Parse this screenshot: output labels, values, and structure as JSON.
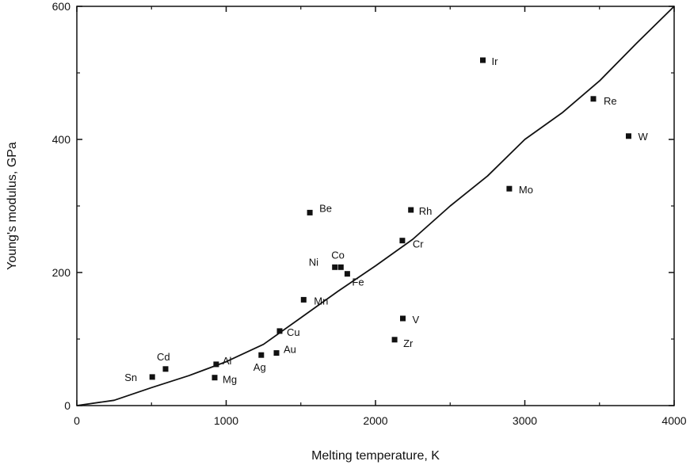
{
  "chart_data": {
    "type": "scatter",
    "title": "",
    "xlabel": "Melting temperature, K",
    "ylabel": "Young's modulus, GPa",
    "xlim": [
      0,
      4000
    ],
    "ylim": [
      0,
      600
    ],
    "xticks": [
      0,
      1000,
      2000,
      3000,
      4000
    ],
    "yticks": [
      0,
      200,
      400,
      600
    ],
    "grid": false,
    "legend": "none",
    "colors": {
      "points": "#111111",
      "curve": "#111111",
      "frame": "#111111"
    },
    "points": [
      {
        "label": "Sn",
        "x": 505,
        "y": 43
      },
      {
        "label": "Cd",
        "x": 594,
        "y": 55
      },
      {
        "label": "Al",
        "x": 933,
        "y": 62
      },
      {
        "label": "Mg",
        "x": 923,
        "y": 42
      },
      {
        "label": "Ag",
        "x": 1235,
        "y": 76
      },
      {
        "label": "Au",
        "x": 1337,
        "y": 79
      },
      {
        "label": "Cu",
        "x": 1358,
        "y": 112
      },
      {
        "label": "Mn",
        "x": 1519,
        "y": 159
      },
      {
        "label": "Be",
        "x": 1560,
        "y": 290
      },
      {
        "label": "Ni",
        "x": 1728,
        "y": 208
      },
      {
        "label": "Co",
        "x": 1768,
        "y": 208
      },
      {
        "label": "Fe",
        "x": 1811,
        "y": 198
      },
      {
        "label": "Cr",
        "x": 2180,
        "y": 248
      },
      {
        "label": "Zr",
        "x": 2128,
        "y": 99
      },
      {
        "label": "V",
        "x": 2183,
        "y": 131
      },
      {
        "label": "Rh",
        "x": 2237,
        "y": 294
      },
      {
        "label": "Ir",
        "x": 2719,
        "y": 519
      },
      {
        "label": "Mo",
        "x": 2896,
        "y": 326
      },
      {
        "label": "Re",
        "x": 3459,
        "y": 461
      },
      {
        "label": "W",
        "x": 3695,
        "y": 405
      }
    ],
    "trend_curve": {
      "x": [
        0,
        250,
        500,
        750,
        1000,
        1250,
        1500,
        1750,
        2000,
        2250,
        2500,
        2750,
        3000,
        3250,
        3500,
        3750,
        4000
      ],
      "y": [
        0,
        8,
        27,
        45,
        66,
        92,
        132,
        172,
        210,
        250,
        300,
        345,
        400,
        440,
        488,
        545,
        600
      ]
    }
  }
}
